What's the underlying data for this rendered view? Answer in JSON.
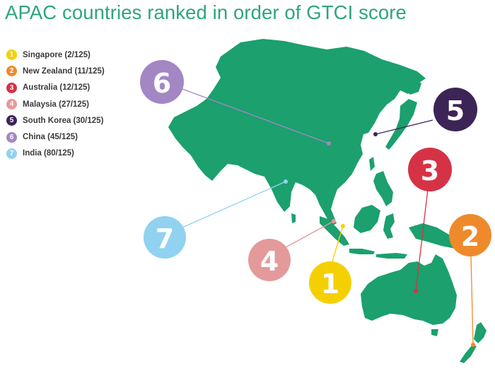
{
  "title": "APAC countries ranked in order of GTCI score",
  "land_color": "#1ba06e",
  "legend": [
    {
      "rank": "1",
      "label": "Singapore (2/125)",
      "color": "#f5d000"
    },
    {
      "rank": "2",
      "label": "New Zealand (11/125)",
      "color": "#ef8a2c"
    },
    {
      "rank": "3",
      "label": "Australia (12/125)",
      "color": "#d63245"
    },
    {
      "rank": "4",
      "label": "Malaysia (27/125)",
      "color": "#e49a9b"
    },
    {
      "rank": "5",
      "label": "South Korea (30/125)",
      "color": "#3d2456"
    },
    {
      "rank": "6",
      "label": "China (45/125)",
      "color": "#a387c4"
    },
    {
      "rank": "7",
      "label": "India (80/125)",
      "color": "#90d2f0"
    }
  ]
}
